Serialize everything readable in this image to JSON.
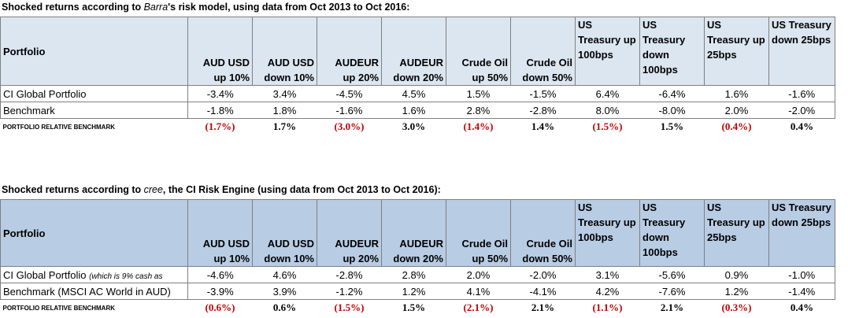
{
  "section1": {
    "title_pre": "Shocked returns according to ",
    "title_em": "Barra",
    "title_post": "'s risk model, using data from Oct 2013 to Oct 2016:",
    "headers": {
      "portfolio": "Portfolio",
      "c1": "AUD USD up 10%",
      "c2": "AUD USD down 10%",
      "c3": "AUDEUR up 20%",
      "c4": "AUDEUR down 20%",
      "c5": "Crude Oil up 50%",
      "c6": "Crude Oil down 50%",
      "c7": "US Treasury up 100bps",
      "c8": "US Treasury down 100bps",
      "c9": "US Treasury up 25bps",
      "c10": "US Treasury down 25bps"
    },
    "rows": [
      {
        "name": "CI Global Portfolio",
        "v": [
          "-3.4%",
          "3.4%",
          "-4.5%",
          "4.5%",
          "1.5%",
          "-1.5%",
          "6.4%",
          "-6.4%",
          "1.6%",
          "-1.6%"
        ]
      },
      {
        "name": "Benchmark",
        "v": [
          "-1.8%",
          "1.8%",
          "-1.6%",
          "1.6%",
          "2.8%",
          "-2.8%",
          "8.0%",
          "-8.0%",
          "2.0%",
          "-2.0%"
        ]
      }
    ],
    "relative": {
      "name": "PORTFOLIO RELATIVE BENCHMARK",
      "v": [
        "(1.7%)",
        "1.7%",
        "(3.0%)",
        "3.0%",
        "(1.4%)",
        "1.4%",
        "(1.5%)",
        "1.5%",
        "(0.4%)",
        "0.4%"
      ]
    }
  },
  "section2": {
    "title_pre": "Shocked returns according to ",
    "title_em": "cree",
    "title_post": ", the CI Risk Engine (using data from Oct 2013 to Oct 2016):",
    "headers": {
      "portfolio": "Portfolio",
      "c1": "AUD USD up 10%",
      "c2": "AUD USD down 10%",
      "c3": "AUDEUR up 20%",
      "c4": "AUDEUR down 20%",
      "c5": "Crude Oil up 50%",
      "c6": "Crude Oil down 50%",
      "c7": "US Treasury up 100bps",
      "c8": "US Treasury down 100bps",
      "c9": "US Treasury up 25bps",
      "c10": "US Treasury down 25bps"
    },
    "rows": [
      {
        "name": "CI Global Portfolio",
        "note": "(which is 9% cash as",
        "v": [
          "-4.6%",
          "4.6%",
          "-2.8%",
          "2.8%",
          "2.0%",
          "-2.0%",
          "3.1%",
          "-5.6%",
          "0.9%",
          "-1.0%"
        ]
      },
      {
        "name": "Benchmark (MSCI AC World in AUD)",
        "note": "",
        "v": [
          "-3.9%",
          "3.9%",
          "-1.2%",
          "1.2%",
          "4.1%",
          "-4.1%",
          "4.2%",
          "-7.6%",
          "1.2%",
          "-1.4%"
        ]
      }
    ],
    "relative": {
      "name": "PORTFOLIO RELATIVE BENCHMARK",
      "v": [
        "(0.6%)",
        "0.6%",
        "(1.5%)",
        "1.5%",
        "(2.1%)",
        "2.1%",
        "(1.1%)",
        "2.1%",
        "(0.3%)",
        "0.4%"
      ]
    }
  },
  "colors": {
    "header1_bg": "#dce6f1",
    "header2_bg": "#b8cce4",
    "negative": "#c00000"
  }
}
